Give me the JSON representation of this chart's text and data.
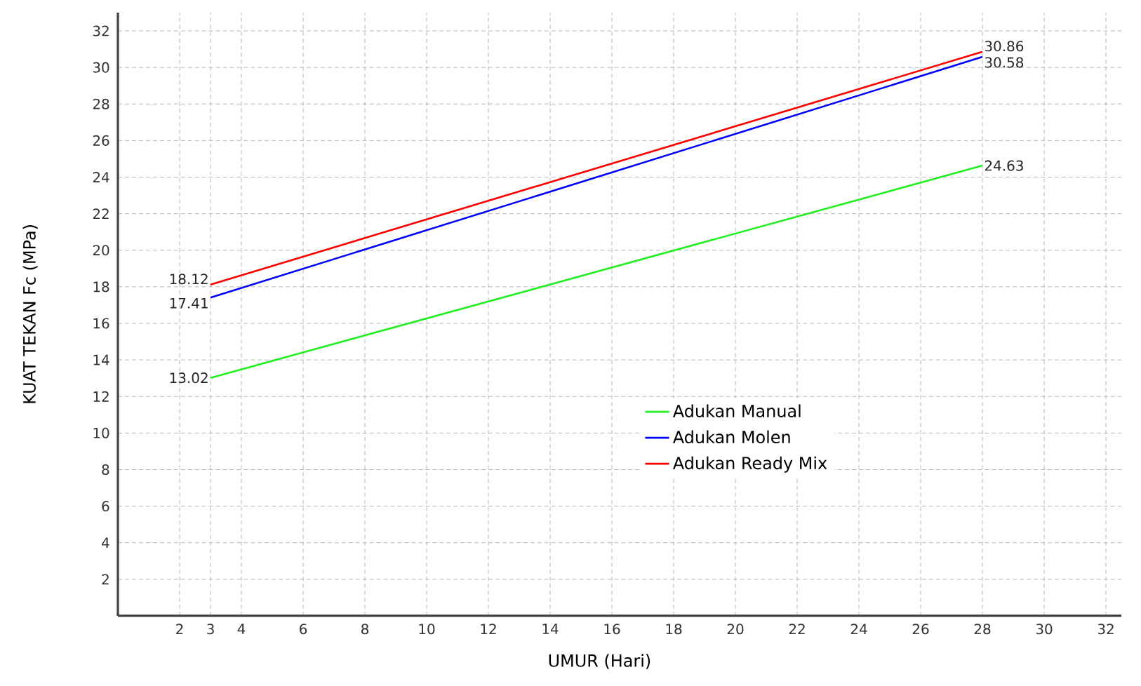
{
  "chart_data": {
    "type": "line",
    "xlabel": "UMUR (Hari)",
    "ylabel": "KUAT TEKAN Fc (MPa)",
    "x": [
      3,
      28
    ],
    "series": [
      {
        "name": "Adukan Manual",
        "color": "#22ee22",
        "values": [
          13.02,
          24.63
        ],
        "value_labels": [
          "13.02",
          "24.63"
        ]
      },
      {
        "name": "Adukan Molen",
        "color": "#0000ff",
        "values": [
          17.41,
          30.58
        ],
        "value_labels": [
          "17.41",
          "30.58"
        ]
      },
      {
        "name": "Adukan Ready Mix",
        "color": "#ff0000",
        "values": [
          18.12,
          30.86
        ],
        "value_labels": [
          "18.12",
          "30.86"
        ]
      }
    ],
    "xlim": [
      0,
      32.5
    ],
    "ylim": [
      0,
      33
    ],
    "xticks": [
      2,
      3,
      4,
      6,
      8,
      10,
      12,
      14,
      16,
      18,
      20,
      22,
      24,
      26,
      28,
      30,
      32
    ],
    "yticks": [
      2,
      4,
      6,
      8,
      10,
      12,
      14,
      16,
      18,
      20,
      22,
      24,
      26,
      28,
      30,
      32
    ],
    "grid": true,
    "legend": "bottom right",
    "line_style": "solid"
  }
}
